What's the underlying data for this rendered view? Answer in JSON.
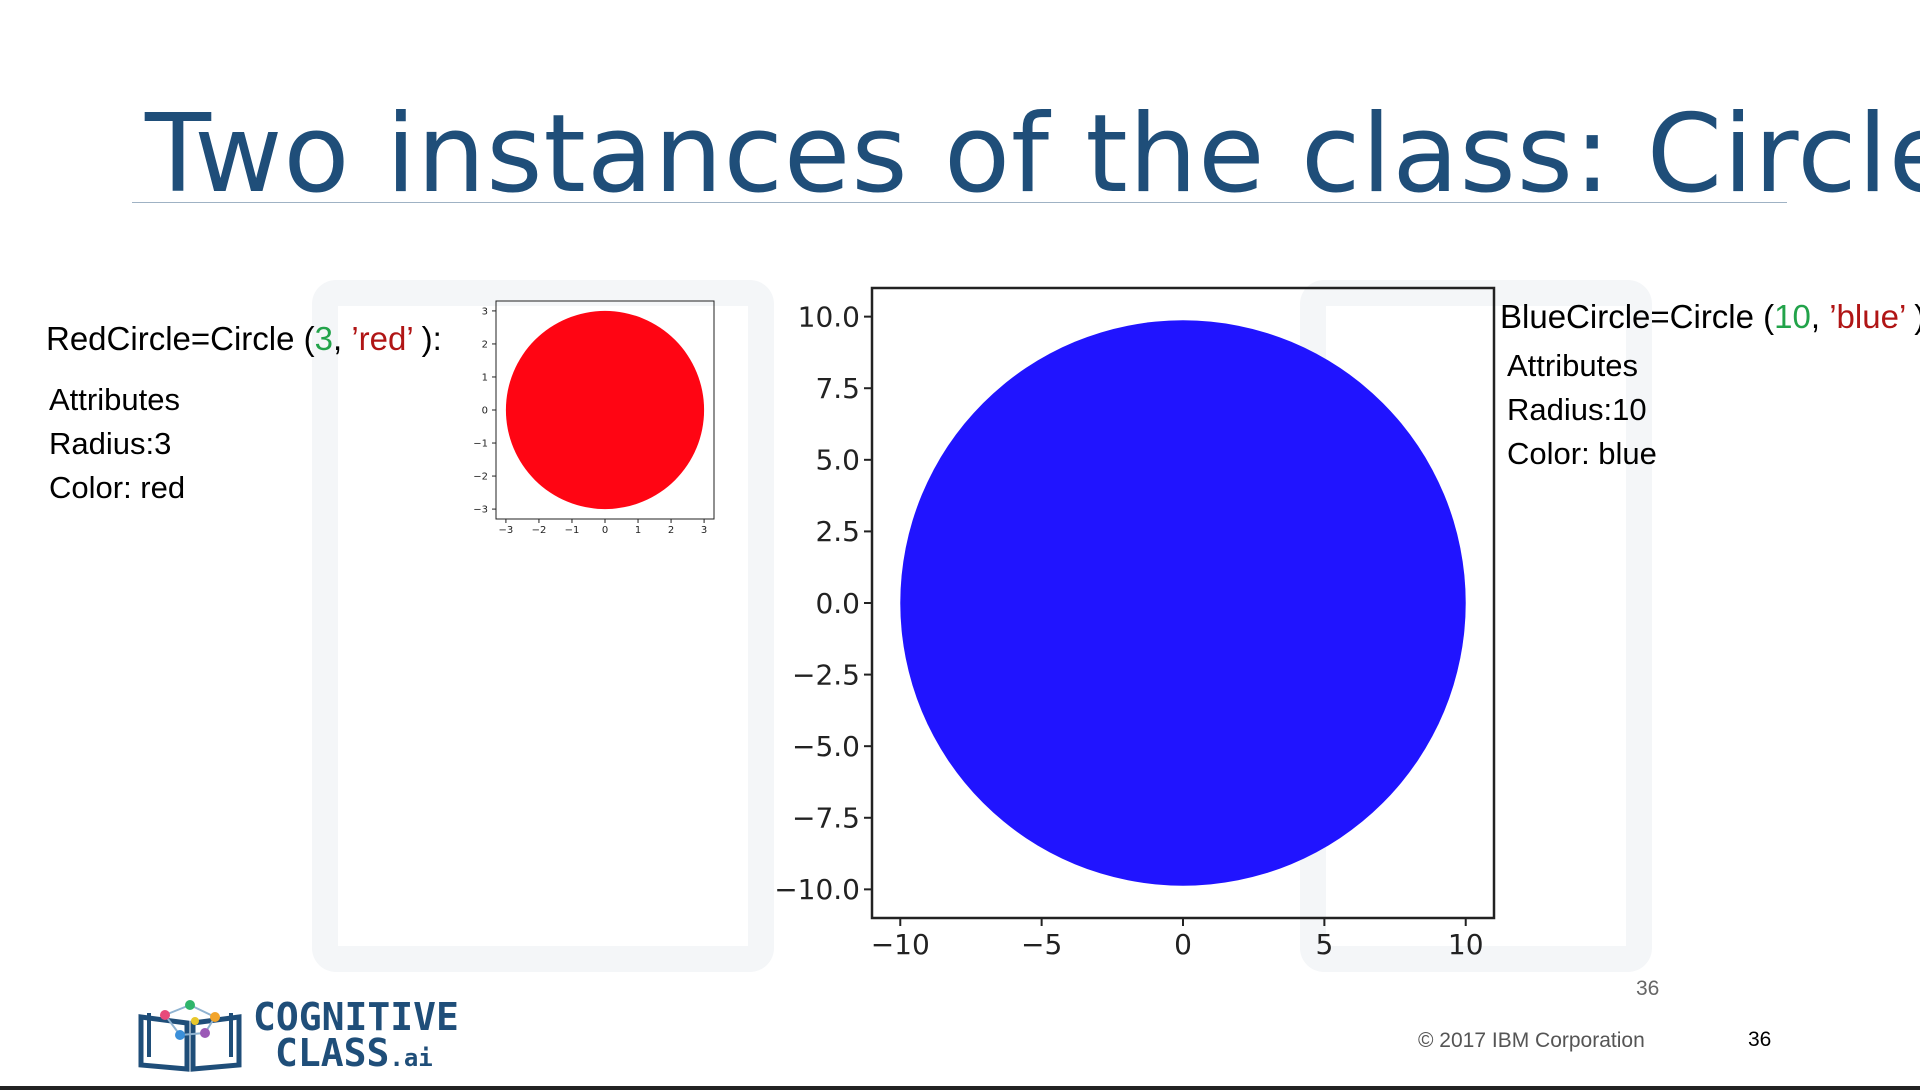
{
  "slide": {
    "title": "Two instances of the class: Circle",
    "page_number": "36",
    "page_number_footer": "36",
    "copyright": "© 2017 IBM Corporation",
    "logo": {
      "line1": "COGNITIVE",
      "line2": "CLASS",
      "suffix": ".ai"
    }
  },
  "red_instance": {
    "code_prefix": "RedCircle=Circle (",
    "code_arg_num": "3",
    "code_sep": ", ",
    "code_arg_str": "’red’",
    "code_suffix": " ):",
    "attributes_heading": "Attributes",
    "radius_line": "Radius:3",
    "color_line": "Color: red"
  },
  "blue_instance": {
    "code_prefix": "BlueCircle=Circle (",
    "code_arg_num": "10",
    "code_sep": ", ",
    "code_arg_str": "’blue’",
    "code_suffix": " )",
    "attributes_heading": "Attributes",
    "radius_line": "Radius:10",
    "color_line": "Color: blue"
  },
  "chart_data": [
    {
      "type": "scatter",
      "description_shape": "filled circle",
      "center": [
        0,
        0
      ],
      "radius": 3,
      "color": "#ff0513",
      "xlim": [
        -3.3,
        3.3
      ],
      "ylim": [
        -3.3,
        3.3
      ],
      "xticks": [
        -3,
        -2,
        -1,
        0,
        1,
        2,
        3
      ],
      "yticks": [
        -3,
        -2,
        -1,
        0,
        1,
        2,
        3
      ],
      "xtick_labels": [
        "−3",
        "−2",
        "−1",
        "0",
        "1",
        "2",
        "3"
      ],
      "ytick_labels": [
        "−3",
        "−2",
        "−1",
        "0",
        "1",
        "2",
        "3"
      ]
    },
    {
      "type": "scatter",
      "description_shape": "filled circle",
      "center": [
        0,
        0
      ],
      "radius": 10,
      "color": "#2014ff",
      "xlim": [
        -11,
        11
      ],
      "ylim": [
        -11,
        11
      ],
      "xticks": [
        -10,
        -5,
        0,
        5,
        10
      ],
      "yticks": [
        -10,
        -7.5,
        -5,
        -2.5,
        0,
        2.5,
        5,
        7.5,
        10
      ],
      "xtick_labels": [
        "−10",
        "−5",
        "0",
        "5",
        "10"
      ],
      "ytick_labels": [
        "−10.0",
        "−7.5",
        "−5.0",
        "−2.5",
        "0.0",
        "2.5",
        "5.0",
        "7.5",
        "10.0"
      ]
    }
  ]
}
